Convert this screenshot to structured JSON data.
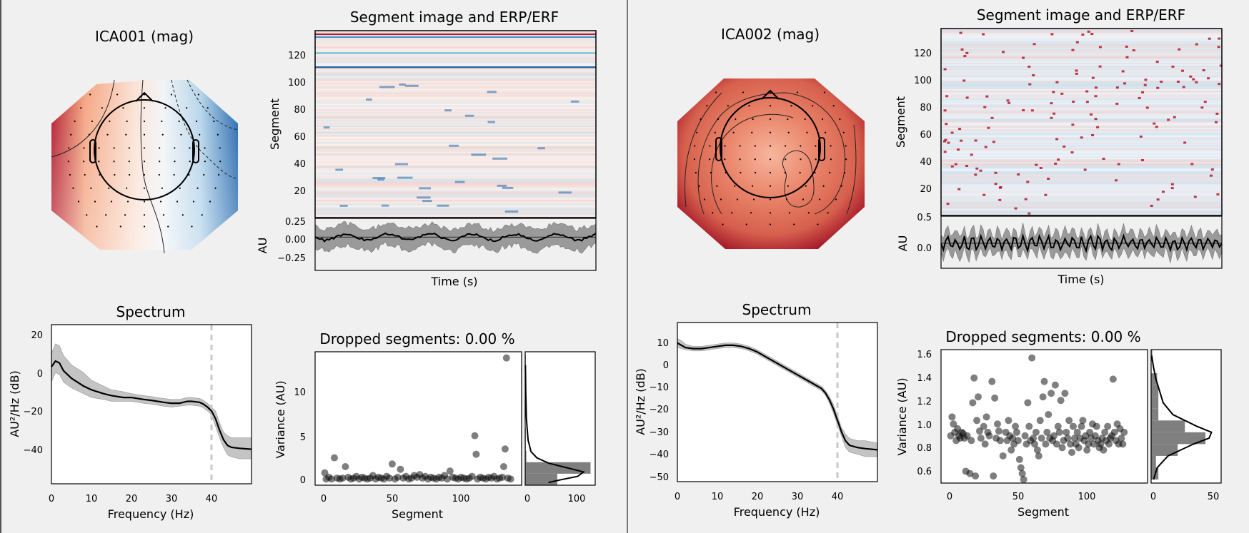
{
  "windows": [
    {
      "topomap": {
        "title": "ICA001 (mag)"
      },
      "image": {
        "title": "Segment image and ERP/ERF",
        "ylabel": "Segment",
        "yticks": [
          "20",
          "40",
          "60",
          "80",
          "100",
          "120"
        ],
        "erp_ylabel": "AU",
        "erp_yticks": [
          "0.25",
          "0.00",
          "−0.25"
        ],
        "xlabel": "Time (s)"
      },
      "spectrum": {
        "title": "Spectrum",
        "xlabel": "Frequency (Hz)",
        "ylabel": "AU²/Hz (dB)",
        "xticks": [
          "0",
          "10",
          "20",
          "30",
          "40"
        ],
        "yticks": [
          "20",
          "0",
          "−20",
          "−40"
        ]
      },
      "dropped": {
        "title": "Dropped segments: 0.00 %",
        "xlabel": "Segment",
        "ylabel": "Variance (AU)",
        "xticks": [
          "0",
          "50",
          "100"
        ],
        "yticks": [
          "0",
          "5",
          "10"
        ],
        "hist_xticks": [
          "0",
          "100"
        ]
      }
    },
    {
      "topomap": {
        "title": "ICA002 (mag)"
      },
      "image": {
        "title": "Segment image and ERP/ERF",
        "ylabel": "Segment",
        "yticks": [
          "20",
          "40",
          "60",
          "80",
          "100",
          "120"
        ],
        "erp_ylabel": "AU",
        "erp_yticks": [
          "0.5",
          "0.0"
        ],
        "xlabel": "Time (s)"
      },
      "spectrum": {
        "title": "Spectrum",
        "xlabel": "Frequency (Hz)",
        "ylabel": "AU²/Hz (dB)",
        "xticks": [
          "0",
          "10",
          "20",
          "30",
          "40"
        ],
        "yticks": [
          "10",
          "0",
          "−10",
          "−20",
          "−30",
          "−40",
          "−50"
        ]
      },
      "dropped": {
        "title": "Dropped segments: 0.00 %",
        "xlabel": "Segment",
        "ylabel": "Variance (AU)",
        "xticks": [
          "0",
          "50",
          "100"
        ],
        "yticks": [
          "0.6",
          "0.8",
          "1.0",
          "1.2",
          "1.4",
          "1.6"
        ],
        "hist_xticks": [
          "0",
          "50"
        ]
      }
    }
  ],
  "chart_data": [
    {
      "type": "line",
      "title": "Spectrum",
      "xlabel": "Frequency (Hz)",
      "ylabel": "AU²/Hz (dB)",
      "xlim": [
        0,
        50
      ],
      "ylim": [
        -58,
        25
      ],
      "cutoff_line_x": 40,
      "x": [
        0,
        1,
        2,
        3,
        5,
        8,
        10,
        13,
        15,
        18,
        20,
        23,
        25,
        28,
        30,
        32,
        34,
        35,
        37,
        38,
        39,
        40,
        41,
        42,
        43,
        44,
        45,
        47,
        50
      ],
      "mean": [
        3,
        6,
        5,
        1,
        -3,
        -7,
        -9,
        -11,
        -12,
        -13,
        -13,
        -14,
        -14.5,
        -15.5,
        -16,
        -16,
        -15,
        -15,
        -15.5,
        -16.5,
        -18,
        -20,
        -24,
        -30,
        -35,
        -38,
        -39,
        -39.5,
        -40
      ],
      "lower": [
        -5,
        0,
        -1,
        -5,
        -8,
        -11,
        -13,
        -14,
        -15,
        -15,
        -15,
        -16,
        -16.5,
        -17.5,
        -18,
        -17.5,
        -17,
        -17,
        -17.5,
        -18.5,
        -20,
        -22,
        -28,
        -34,
        -39,
        -43,
        -44,
        -45,
        -45
      ],
      "upper": [
        10,
        15,
        14,
        9,
        4,
        0,
        -4,
        -7,
        -9,
        -10,
        -11,
        -12,
        -12.5,
        -13.5,
        -14,
        -14,
        -13,
        -13,
        -13.5,
        -14.5,
        -16,
        -18,
        -20,
        -26,
        -31,
        -33,
        -34,
        -34,
        -34
      ]
    },
    {
      "type": "scatter",
      "title": "Dropped segments: 0.00 %",
      "xlabel": "Segment",
      "ylabel": "Variance (AU)",
      "xlim": [
        -7,
        143
      ],
      "ylim": [
        -0.6,
        14.5
      ],
      "points": [
        [
          0,
          0.8
        ],
        [
          1,
          0.1
        ],
        [
          3,
          0.3
        ],
        [
          5,
          0.1
        ],
        [
          7,
          2.5
        ],
        [
          9,
          0.2
        ],
        [
          11,
          0.1
        ],
        [
          13,
          0.2
        ],
        [
          15,
          1.5
        ],
        [
          17,
          0.3
        ],
        [
          19,
          0.1
        ],
        [
          21,
          0.2
        ],
        [
          23,
          0.4
        ],
        [
          25,
          0.1
        ],
        [
          27,
          0.3
        ],
        [
          29,
          0.2
        ],
        [
          31,
          0.1
        ],
        [
          33,
          0.2
        ],
        [
          35,
          0.5
        ],
        [
          37,
          0.1
        ],
        [
          39,
          0.3
        ],
        [
          41,
          0.2
        ],
        [
          43,
          0.1
        ],
        [
          45,
          0.4
        ],
        [
          47,
          0.2
        ],
        [
          49,
          1.8
        ],
        [
          51,
          0.1
        ],
        [
          53,
          0.3
        ],
        [
          55,
          1.2
        ],
        [
          57,
          0.2
        ],
        [
          59,
          0.4
        ],
        [
          61,
          0.1
        ],
        [
          63,
          0.2
        ],
        [
          65,
          0.5
        ],
        [
          67,
          0.3
        ],
        [
          69,
          0.6
        ],
        [
          71,
          0.2
        ],
        [
          73,
          0.4
        ],
        [
          75,
          0.1
        ],
        [
          77,
          0.3
        ],
        [
          79,
          0.2
        ],
        [
          81,
          0.1
        ],
        [
          83,
          0.3
        ],
        [
          85,
          0.2
        ],
        [
          87,
          0.5
        ],
        [
          89,
          0.1
        ],
        [
          91,
          1.0
        ],
        [
          93,
          0.3
        ],
        [
          95,
          0.2
        ],
        [
          97,
          0.1
        ],
        [
          99,
          0.3
        ],
        [
          101,
          0.2
        ],
        [
          103,
          0.1
        ],
        [
          105,
          0.2
        ],
        [
          107,
          0.4
        ],
        [
          109,
          5.0
        ],
        [
          110,
          2.9
        ],
        [
          111,
          0.1
        ],
        [
          113,
          0.3
        ],
        [
          115,
          0.2
        ],
        [
          117,
          0.1
        ],
        [
          119,
          0.3
        ],
        [
          121,
          0.2
        ],
        [
          123,
          0.4
        ],
        [
          125,
          0.1
        ],
        [
          127,
          0.2
        ],
        [
          129,
          0.3
        ],
        [
          130,
          1.5
        ],
        [
          131,
          3.5
        ],
        [
          132,
          13.8
        ],
        [
          133,
          0.2
        ],
        [
          135,
          0.1
        ]
      ],
      "histogram": {
        "xlim": [
          0,
          120
        ],
        "bins": [
          {
            "y0": -0.6,
            "y1": 0.7,
            "count": 55
          },
          {
            "y0": 0.7,
            "y1": 2.0,
            "count": 112
          },
          {
            "y0": 2.0,
            "y1": 3.3,
            "count": 2
          },
          {
            "y0": 3.3,
            "y1": 4.6,
            "count": 1
          },
          {
            "y0": 4.6,
            "y1": 5.9,
            "count": 1
          },
          {
            "y0": 12.9,
            "y1": 14.2,
            "count": 1
          }
        ],
        "kde": [
          [
            -0.3,
            40
          ],
          [
            0.0,
            60
          ],
          [
            0.4,
            90
          ],
          [
            0.9,
            100
          ],
          [
            1.4,
            70
          ],
          [
            1.9,
            40
          ],
          [
            2.5,
            20
          ],
          [
            3.2,
            10
          ],
          [
            4.5,
            5
          ],
          [
            7,
            2
          ],
          [
            10,
            1
          ],
          [
            13,
            0.4
          ]
        ]
      }
    },
    {
      "type": "line",
      "title": "Spectrum",
      "xlabel": "Frequency (Hz)",
      "ylabel": "AU²/Hz (dB)",
      "xlim": [
        0,
        50
      ],
      "ylim": [
        -52,
        18
      ],
      "cutoff_line_x": 40,
      "x": [
        0,
        1,
        2,
        4,
        6,
        8,
        10,
        12,
        14,
        16,
        18,
        20,
        22,
        24,
        26,
        28,
        30,
        32,
        34,
        36,
        37,
        38,
        39,
        40,
        41,
        42,
        43,
        45,
        47,
        50
      ],
      "mean": [
        9,
        8,
        7,
        6.5,
        6.5,
        7,
        7.5,
        8,
        8,
        7.5,
        6.5,
        5,
        3,
        1,
        -1,
        -3,
        -5,
        -7,
        -9,
        -11,
        -13,
        -16,
        -20,
        -25,
        -30,
        -34,
        -36,
        -37,
        -37.5,
        -38
      ],
      "lower": [
        7,
        6.5,
        6,
        5.5,
        5.5,
        6,
        6.5,
        7,
        7,
        6.5,
        5.5,
        4,
        2,
        0,
        -2,
        -4,
        -6,
        -8,
        -10,
        -12,
        -14,
        -17.5,
        -22,
        -27,
        -32,
        -37,
        -39,
        -40,
        -41,
        -41
      ],
      "upper": [
        11,
        10,
        8.5,
        7.5,
        7.5,
        8,
        8.5,
        9,
        9,
        8.5,
        7.5,
        6,
        4,
        2,
        0,
        -2,
        -4,
        -6,
        -8,
        -10,
        -12,
        -14.5,
        -18,
        -23,
        -28,
        -31,
        -33,
        -34,
        -34,
        -35
      ]
    },
    {
      "type": "scatter",
      "title": "Dropped segments: 0.00 %",
      "xlabel": "Segment",
      "ylabel": "Variance (AU)",
      "xlim": [
        -7,
        143
      ],
      "ylim": [
        0.52,
        1.65
      ],
      "points": [
        [
          0,
          0.92
        ],
        [
          1,
          1.08
        ],
        [
          2,
          1.02
        ],
        [
          3,
          0.95
        ],
        [
          4,
          0.88
        ],
        [
          5,
          0.98
        ],
        [
          6,
          0.92
        ],
        [
          7,
          0.9
        ],
        [
          8,
          0.95
        ],
        [
          9,
          0.94
        ],
        [
          10,
          0.9
        ],
        [
          11,
          0.62
        ],
        [
          12,
          0.92
        ],
        [
          14,
          0.6
        ],
        [
          15,
          0.88
        ],
        [
          16,
          1.2
        ],
        [
          17,
          1.41
        ],
        [
          18,
          0.58
        ],
        [
          19,
          1.05
        ],
        [
          20,
          1.25
        ],
        [
          21,
          0.96
        ],
        [
          22,
          0.9
        ],
        [
          24,
          1.0
        ],
        [
          25,
          0.85
        ],
        [
          26,
          1.08
        ],
        [
          27,
          0.95
        ],
        [
          28,
          0.92
        ],
        [
          30,
          1.38
        ],
        [
          31,
          0.58
        ],
        [
          32,
          1.24
        ],
        [
          33,
          0.9
        ],
        [
          34,
          1.02
        ],
        [
          35,
          0.96
        ],
        [
          36,
          0.88
        ],
        [
          38,
          0.75
        ],
        [
          40,
          0.95
        ],
        [
          41,
          0.88
        ],
        [
          42,
          1.05
        ],
        [
          43,
          0.92
        ],
        [
          44,
          0.8
        ],
        [
          45,
          0.9
        ],
        [
          46,
          0.85
        ],
        [
          47,
          1.0
        ],
        [
          48,
          0.95
        ],
        [
          49,
          0.88
        ],
        [
          50,
          0.72
        ],
        [
          51,
          0.65
        ],
        [
          52,
          0.6
        ],
        [
          53,
          0.55
        ],
        [
          54,
          0.92
        ],
        [
          55,
          0.85
        ],
        [
          56,
          1.2
        ],
        [
          57,
          1.0
        ],
        [
          58,
          0.88
        ],
        [
          59,
          1.58
        ],
        [
          60,
          0.9
        ],
        [
          61,
          0.85
        ],
        [
          62,
          0.95
        ],
        [
          63,
          0.8
        ],
        [
          64,
          0.75
        ],
        [
          65,
          1.05
        ],
        [
          66,
          0.9
        ],
        [
          67,
          1.25
        ],
        [
          68,
          1.38
        ],
        [
          69,
          0.85
        ],
        [
          70,
          0.95
        ],
        [
          71,
          1.1
        ],
        [
          72,
          0.9
        ],
        [
          73,
          1.28
        ],
        [
          74,
          0.88
        ],
        [
          75,
          0.92
        ],
        [
          76,
          1.35
        ],
        [
          77,
          0.85
        ],
        [
          78,
          1.0
        ],
        [
          79,
          0.95
        ],
        [
          80,
          1.22
        ],
        [
          81,
          0.82
        ],
        [
          82,
          0.88
        ],
        [
          83,
          1.28
        ],
        [
          84,
          0.95
        ],
        [
          85,
          0.9
        ],
        [
          86,
          1.05
        ],
        [
          87,
          0.85
        ],
        [
          88,
          0.78
        ],
        [
          89,
          1.0
        ],
        [
          90,
          0.9
        ],
        [
          91,
          0.85
        ],
        [
          92,
          0.95
        ],
        [
          93,
          0.82
        ],
        [
          94,
          0.9
        ],
        [
          95,
          1.0
        ],
        [
          96,
          1.05
        ],
        [
          97,
          0.88
        ],
        [
          98,
          0.92
        ],
        [
          99,
          0.8
        ],
        [
          100,
          0.85
        ],
        [
          101,
          0.95
        ],
        [
          102,
          0.9
        ],
        [
          103,
          1.02
        ],
        [
          104,
          0.85
        ],
        [
          105,
          0.92
        ],
        [
          106,
          1.0
        ],
        [
          107,
          0.88
        ],
        [
          108,
          0.82
        ],
        [
          109,
          0.85
        ],
        [
          110,
          0.9
        ],
        [
          111,
          0.8
        ],
        [
          112,
          0.95
        ],
        [
          113,
          0.88
        ],
        [
          114,
          1.0
        ],
        [
          115,
          0.85
        ],
        [
          116,
          0.9
        ],
        [
          117,
          0.92
        ],
        [
          118,
          1.4
        ],
        [
          119,
          0.95
        ],
        [
          120,
          0.88
        ],
        [
          121,
          1.02
        ],
        [
          122,
          0.85
        ],
        [
          123,
          0.98
        ],
        [
          124,
          0.9
        ],
        [
          125,
          0.85
        ],
        [
          126,
          0.95
        ]
      ],
      "histogram": {
        "xlim": [
          0,
          58
        ],
        "bins": [
          {
            "y0": 0.55,
            "y1": 0.65,
            "count": 6
          },
          {
            "y0": 0.65,
            "y1": 0.75,
            "count": 4
          },
          {
            "y0": 0.75,
            "y1": 0.85,
            "count": 22
          },
          {
            "y0": 0.85,
            "y1": 0.95,
            "count": 45
          },
          {
            "y0": 0.95,
            "y1": 1.05,
            "count": 28
          },
          {
            "y0": 1.05,
            "y1": 1.15,
            "count": 6
          },
          {
            "y0": 1.15,
            "y1": 1.25,
            "count": 6
          },
          {
            "y0": 1.25,
            "y1": 1.35,
            "count": 6
          },
          {
            "y0": 1.35,
            "y1": 1.45,
            "count": 5
          },
          {
            "y0": 1.55,
            "y1": 1.65,
            "count": 1
          }
        ],
        "kde": [
          [
            0.55,
            2
          ],
          [
            0.65,
            5
          ],
          [
            0.75,
            14
          ],
          [
            0.85,
            35
          ],
          [
            0.9,
            48
          ],
          [
            0.95,
            50
          ],
          [
            1.0,
            38
          ],
          [
            1.1,
            18
          ],
          [
            1.2,
            10
          ],
          [
            1.3,
            7
          ],
          [
            1.4,
            4
          ],
          [
            1.5,
            2
          ],
          [
            1.6,
            0.5
          ]
        ]
      }
    }
  ]
}
